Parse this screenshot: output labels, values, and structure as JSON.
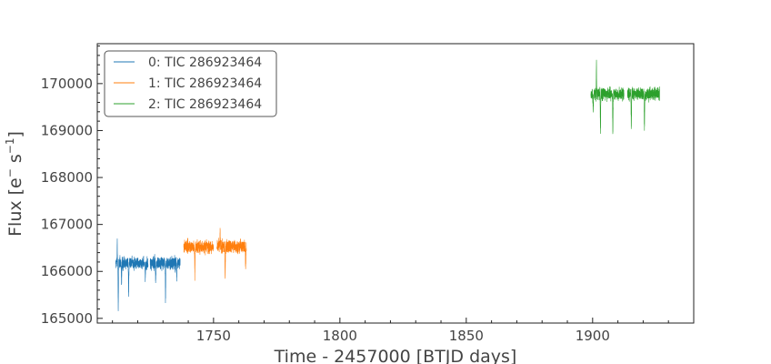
{
  "chart_data": {
    "type": "line",
    "title": "",
    "xlabel": "Time - 2457000 [BTJD days]",
    "ylabel_main": "Flux [e",
    "ylabel_sup1": "−",
    "ylabel_mid": "s",
    "ylabel_sup2": "−1",
    "ylabel_end": "]",
    "xlim": [
      1704,
      1940
    ],
    "ylim": [
      164900,
      170850
    ],
    "x_ticks": [
      1750,
      1800,
      1850,
      1900
    ],
    "x_tick_labels": [
      "1750",
      "1800",
      "1850",
      "1900"
    ],
    "y_ticks": [
      165000,
      166000,
      167000,
      168000,
      169000,
      170000
    ],
    "y_tick_labels": [
      "165000",
      "166000",
      "167000",
      "168000",
      "169000",
      "170000"
    ],
    "legend_position": "top-left",
    "grid": false,
    "series": [
      {
        "name": "0: TIC 286923464",
        "color": "#1f77b4",
        "segments": [
          [
            1711.3,
            1724.1
          ],
          [
            1724.9,
            1736.8
          ]
        ],
        "base_flux": 166180,
        "noise": 130,
        "dips": [
          {
            "x": 1712.3,
            "depth": 1050
          },
          {
            "x": 1713.6,
            "depth": 500
          },
          {
            "x": 1716.4,
            "depth": 800
          },
          {
            "x": 1723.0,
            "depth": 400
          },
          {
            "x": 1727.1,
            "depth": 450
          },
          {
            "x": 1731.0,
            "depth": 800
          },
          {
            "x": 1735.4,
            "depth": 350
          }
        ],
        "spikes": [
          {
            "x": 1711.9,
            "height": 520
          }
        ]
      },
      {
        "name": "1: TIC 286923464",
        "color": "#ff7f0e",
        "segments": [
          [
            1738.2,
            1750.0
          ],
          [
            1751.3,
            1763.0
          ]
        ],
        "base_flux": 166530,
        "noise": 130,
        "dips": [
          {
            "x": 1742.6,
            "depth": 650
          },
          {
            "x": 1754.6,
            "depth": 700
          },
          {
            "x": 1762.7,
            "depth": 550
          }
        ],
        "spikes": [
          {
            "x": 1752.6,
            "height": 380
          }
        ]
      },
      {
        "name": "2: TIC 286923464",
        "color": "#2ca02c",
        "segments": [
          [
            1899.3,
            1912.4
          ],
          [
            1913.8,
            1926.5
          ]
        ],
        "base_flux": 169780,
        "noise": 130,
        "dips": [
          {
            "x": 1900.2,
            "depth": 400
          },
          {
            "x": 1903.1,
            "depth": 880
          },
          {
            "x": 1908.0,
            "depth": 920
          },
          {
            "x": 1915.3,
            "depth": 880
          },
          {
            "x": 1920.5,
            "depth": 880
          }
        ],
        "spikes": [
          {
            "x": 1901.5,
            "height": 780
          }
        ]
      }
    ]
  }
}
